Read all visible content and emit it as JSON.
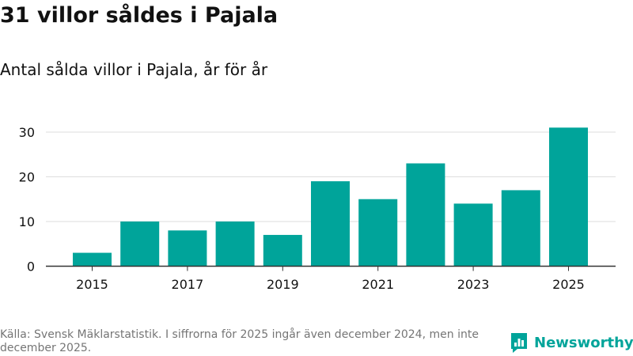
{
  "title": "31 villor såldes i Pajala",
  "subtitle": "Antal sålda villor i Pajala, år för år",
  "source": "Källa: Svensk Mäklarstatistik. I siffrorna för 2025 ingår även december 2024, men inte december 2025.",
  "logo": {
    "name": "Newsworthy",
    "icon": "newsworthy-logo-icon"
  },
  "colors": {
    "bar": "#00a49a",
    "grid": "#dddddd",
    "axis": "#333333",
    "text": "#111111",
    "muted": "#757575"
  },
  "chart_data": {
    "type": "bar",
    "categories": [
      "2015",
      "2016",
      "2017",
      "2018",
      "2019",
      "2020",
      "2021",
      "2022",
      "2023",
      "2024",
      "2025"
    ],
    "values": [
      3,
      10,
      8,
      10,
      7,
      19,
      15,
      23,
      14,
      17,
      31
    ],
    "xticks": [
      "2015",
      "2017",
      "2019",
      "2021",
      "2023",
      "2025"
    ],
    "yticks": [
      0,
      10,
      20,
      30
    ],
    "ylim": [
      0,
      33
    ],
    "xlabel": "",
    "ylabel": "",
    "grid": true
  }
}
